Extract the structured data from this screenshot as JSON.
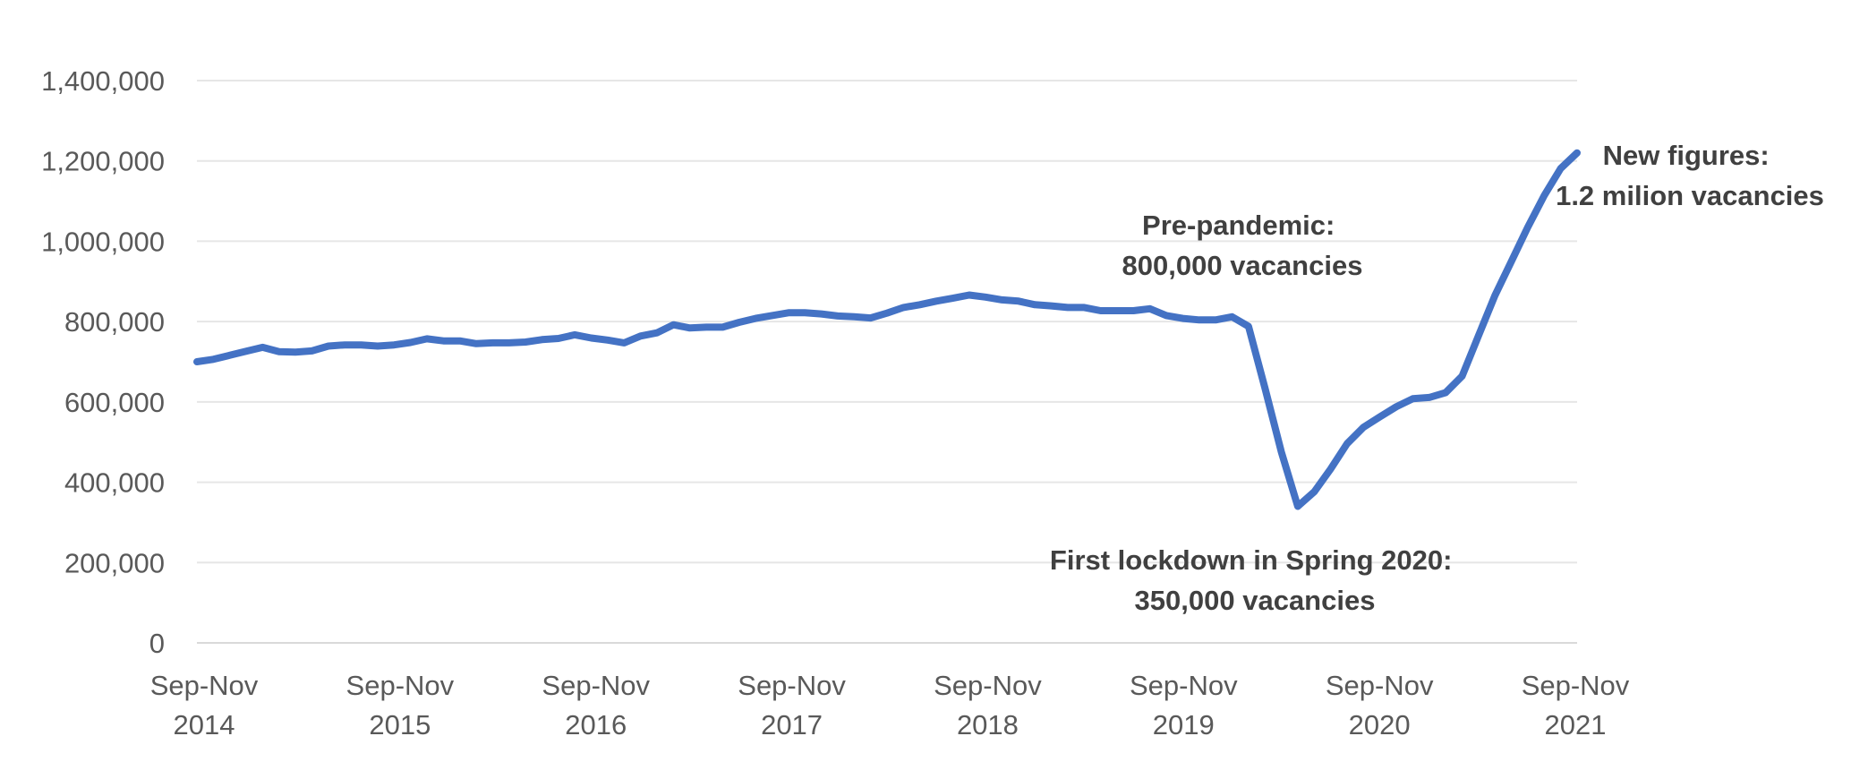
{
  "chart_data": {
    "type": "line",
    "title": "",
    "xlabel": "",
    "ylabel": "",
    "ylim": [
      0,
      1400000
    ],
    "grid": true,
    "y_ticks": [
      {
        "value": 0,
        "label": "0"
      },
      {
        "value": 200000,
        "label": "200,000"
      },
      {
        "value": 400000,
        "label": "400,000"
      },
      {
        "value": 600000,
        "label": "600,000"
      },
      {
        "value": 800000,
        "label": "800,000"
      },
      {
        "value": 1000000,
        "label": "1,000,000"
      },
      {
        "value": 1200000,
        "label": "1,200,000"
      },
      {
        "value": 1400000,
        "label": "1,400,000"
      }
    ],
    "x_ticks": [
      {
        "line1": "Sep-Nov",
        "line2": "2014"
      },
      {
        "line1": "Sep-Nov",
        "line2": "2015"
      },
      {
        "line1": "Sep-Nov",
        "line2": "2016"
      },
      {
        "line1": "Sep-Nov",
        "line2": "2017"
      },
      {
        "line1": "Sep-Nov",
        "line2": "2018"
      },
      {
        "line1": "Sep-Nov",
        "line2": "2019"
      },
      {
        "line1": "Sep-Nov",
        "line2": "2020"
      },
      {
        "line1": "Sep-Nov",
        "line2": "2021"
      }
    ],
    "line_color": "#4472C4",
    "series": [
      {
        "values": [
          700000,
          706000,
          716000,
          726000,
          736000,
          725000,
          724000,
          727000,
          739000,
          742000,
          742000,
          739000,
          742000,
          748000,
          757000,
          752000,
          752000,
          745000,
          747000,
          747000,
          749000,
          755000,
          758000,
          767000,
          759000,
          754000,
          747000,
          764000,
          772000,
          792000,
          784000,
          786000,
          786000,
          798000,
          808000,
          815000,
          822000,
          822000,
          819000,
          814000,
          812000,
          809000,
          821000,
          835000,
          842000,
          851000,
          858000,
          866000,
          861000,
          854000,
          851000,
          842000,
          839000,
          835000,
          835000,
          827000,
          827000,
          827000,
          832000,
          815000,
          808000,
          804000,
          804000,
          812000,
          788000,
          635000,
          475000,
          340000,
          376000,
          433000,
          496000,
          537000,
          563000,
          588000,
          608000,
          611000,
          623000,
          664000,
          765000,
          865000,
          950000,
          1035000,
          1114000,
          1181000,
          1220000
        ]
      }
    ],
    "annotations": [
      {
        "line1": "Pre-pandemic:",
        "line2": "800,000 vacancies"
      },
      {
        "line1": "First lockdown in Spring 2020:",
        "line2": "350,000 vacancies"
      },
      {
        "line1": "New figures:",
        "line2": "1.2 milion vacancies"
      }
    ]
  }
}
